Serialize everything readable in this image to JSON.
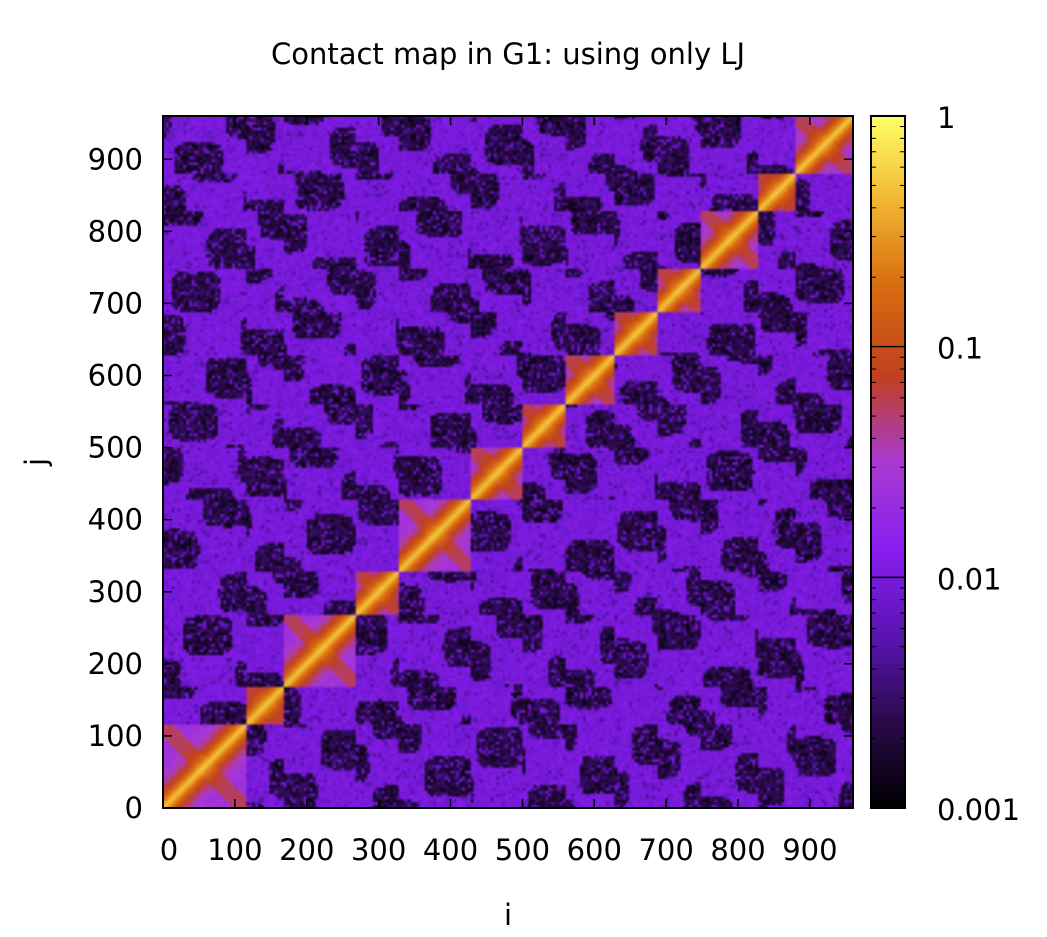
{
  "chart_data": {
    "type": "heatmap",
    "title": "Contact map in G1: using only LJ",
    "xlabel": "i",
    "ylabel": "j",
    "xlim": [
      0,
      960
    ],
    "ylim": [
      0,
      960
    ],
    "x_ticks": [
      "0",
      "100",
      "200",
      "300",
      "400",
      "500",
      "600",
      "700",
      "800",
      "900"
    ],
    "y_ticks": [
      "0",
      "100",
      "200",
      "300",
      "400",
      "500",
      "600",
      "700",
      "800",
      "900"
    ],
    "x_tick_values": [
      0,
      100,
      200,
      300,
      400,
      500,
      600,
      700,
      800,
      900
    ],
    "y_tick_values": [
      0,
      100,
      200,
      300,
      400,
      500,
      600,
      700,
      800,
      900
    ],
    "colorbar": {
      "scale": "log",
      "range": [
        0.001,
        1
      ],
      "tick_values": [
        0.001,
        0.01,
        0.1,
        1
      ],
      "tick_labels": [
        "0.001",
        "0.01",
        "0.1",
        "1"
      ],
      "palette": [
        "#000000",
        "#2a0a4a",
        "#5a14b4",
        "#8a1ef0",
        "#a83ad2",
        "#c0401e",
        "#d86a10",
        "#f0b430",
        "#ffff66"
      ]
    },
    "diagonal_blocks": [
      [
        0,
        115
      ],
      [
        115,
        170
      ],
      [
        170,
        270
      ],
      [
        270,
        330
      ],
      [
        330,
        430
      ],
      [
        430,
        500
      ],
      [
        500,
        560
      ],
      [
        560,
        630
      ],
      [
        630,
        690
      ],
      [
        690,
        750
      ],
      [
        750,
        830
      ],
      [
        830,
        880
      ],
      [
        880,
        960
      ]
    ]
  }
}
